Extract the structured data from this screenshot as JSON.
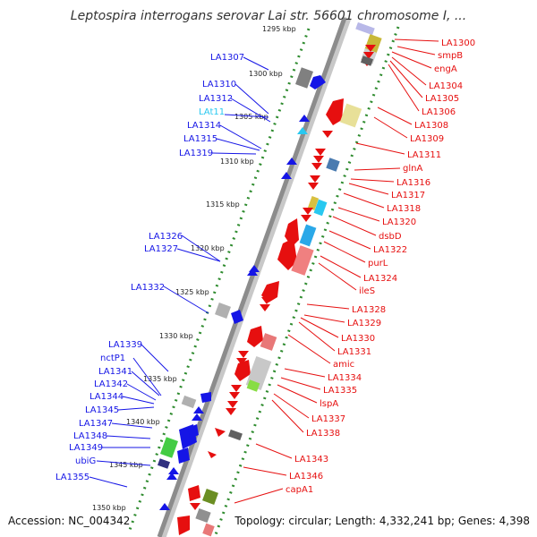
{
  "title": "Leptospira interrogans serovar Lai str. 56601 chromosome I, ...",
  "footer": {
    "accession": "Accession: NC_004342",
    "summary": "Topology: circular; Length: 4,332,241 bp; Genes: 4,398"
  },
  "colors": {
    "forward": "#1515e6",
    "reverse": "#e60f0f",
    "trna": "#28c8f0",
    "backbone": "#8c8c8c",
    "dots": "#2e8b2e"
  },
  "ticks": [
    "1295 kbp",
    "1300 kbp",
    "1305 kbp",
    "1310 kbp",
    "1315 kbp",
    "1320 kbp",
    "1325 kbp",
    "1330 kbp",
    "1335 kbp",
    "1340 kbp",
    "1345 kbp",
    "1350 kbp"
  ],
  "left_labels": [
    {
      "text": "LA1307",
      "kind": "forward"
    },
    {
      "text": "LA1310",
      "kind": "forward"
    },
    {
      "text": "LA1312",
      "kind": "forward"
    },
    {
      "text": "LAt11",
      "kind": "trna"
    },
    {
      "text": "LA1314",
      "kind": "forward"
    },
    {
      "text": "LA1315",
      "kind": "forward"
    },
    {
      "text": "LA1319",
      "kind": "forward"
    },
    {
      "text": "LA1326",
      "kind": "forward"
    },
    {
      "text": "LA1327",
      "kind": "forward"
    },
    {
      "text": "LA1332",
      "kind": "forward"
    },
    {
      "text": "LA1339",
      "kind": "forward"
    },
    {
      "text": "nctP1",
      "kind": "forward"
    },
    {
      "text": "LA1341",
      "kind": "forward"
    },
    {
      "text": "LA1342",
      "kind": "forward"
    },
    {
      "text": "LA1344",
      "kind": "forward"
    },
    {
      "text": "LA1345",
      "kind": "forward"
    },
    {
      "text": "LA1347",
      "kind": "forward"
    },
    {
      "text": "LA1348",
      "kind": "forward"
    },
    {
      "text": "LA1349",
      "kind": "forward"
    },
    {
      "text": "ubiG",
      "kind": "forward"
    },
    {
      "text": "LA1355",
      "kind": "forward"
    }
  ],
  "right_labels": [
    {
      "text": "LA1300",
      "kind": "reverse"
    },
    {
      "text": "smpB",
      "kind": "reverse"
    },
    {
      "text": "engA",
      "kind": "reverse"
    },
    {
      "text": "LA1304",
      "kind": "reverse"
    },
    {
      "text": "LA1305",
      "kind": "reverse"
    },
    {
      "text": "LA1306",
      "kind": "reverse"
    },
    {
      "text": "LA1308",
      "kind": "reverse"
    },
    {
      "text": "LA1309",
      "kind": "reverse"
    },
    {
      "text": "LA1311",
      "kind": "reverse"
    },
    {
      "text": "glnA",
      "kind": "reverse"
    },
    {
      "text": "LA1316",
      "kind": "reverse"
    },
    {
      "text": "LA1317",
      "kind": "reverse"
    },
    {
      "text": "LA1318",
      "kind": "reverse"
    },
    {
      "text": "LA1320",
      "kind": "reverse"
    },
    {
      "text": "dsbD",
      "kind": "reverse"
    },
    {
      "text": "LA1322",
      "kind": "reverse"
    },
    {
      "text": "purL",
      "kind": "reverse"
    },
    {
      "text": "LA1324",
      "kind": "reverse"
    },
    {
      "text": "ileS",
      "kind": "reverse"
    },
    {
      "text": "LA1328",
      "kind": "reverse"
    },
    {
      "text": "LA1329",
      "kind": "reverse"
    },
    {
      "text": "LA1330",
      "kind": "reverse"
    },
    {
      "text": "LA1331",
      "kind": "reverse"
    },
    {
      "text": "amic",
      "kind": "reverse"
    },
    {
      "text": "LA1334",
      "kind": "reverse"
    },
    {
      "text": "LA1335",
      "kind": "reverse"
    },
    {
      "text": "lspA",
      "kind": "reverse"
    },
    {
      "text": "LA1337",
      "kind": "reverse"
    },
    {
      "text": "LA1338",
      "kind": "reverse"
    },
    {
      "text": "LA1343",
      "kind": "reverse"
    },
    {
      "text": "LA1346",
      "kind": "reverse"
    },
    {
      "text": "capA1",
      "kind": "reverse"
    }
  ]
}
